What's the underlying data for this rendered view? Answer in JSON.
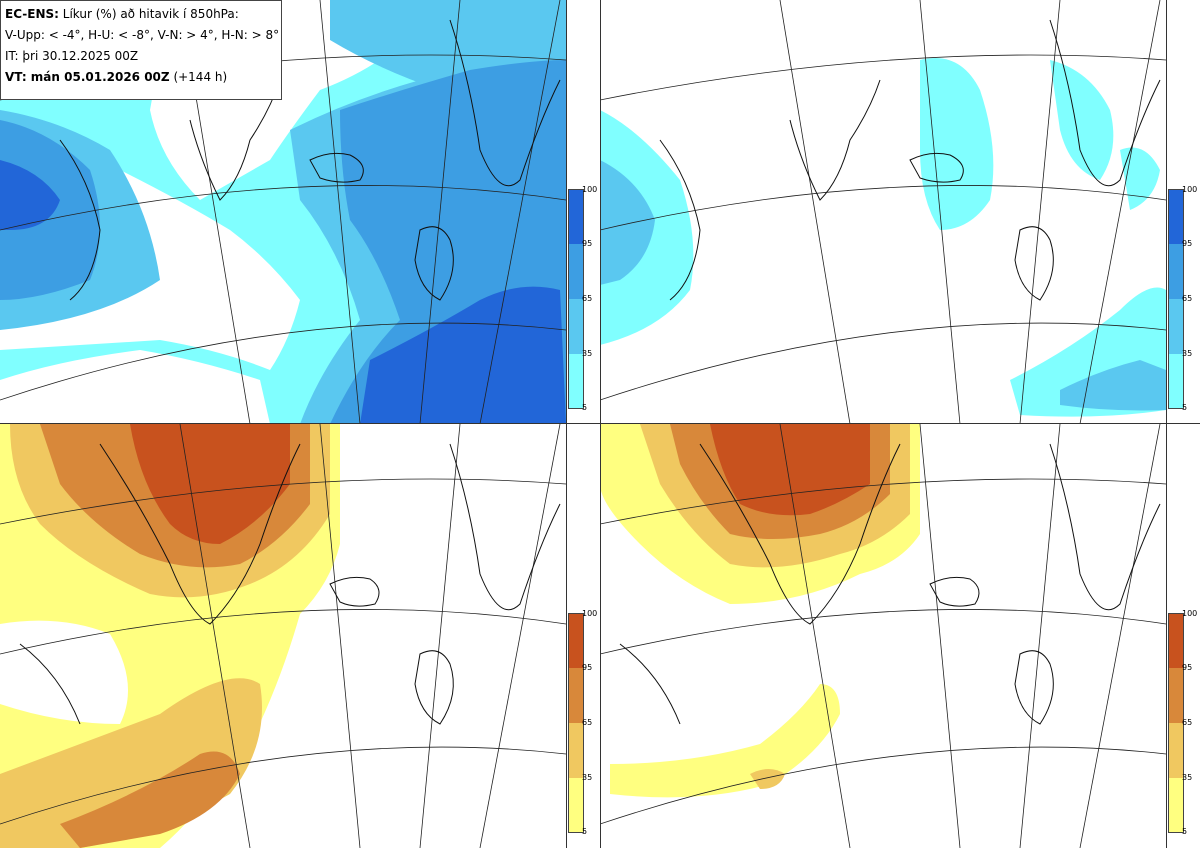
{
  "header": {
    "model": "EC-ENS:",
    "title": "Líkur (%) að hitavik í 850hPa:",
    "thresholds": "V-Upp: < -4°, H-U: < -8°, V-N: > 4°, H-N: > 8°",
    "init_time": "IT: þri 30.12.2025 00Z",
    "valid_label": "VT: mán 05.01.2026 00Z",
    "lead_time": "(+144 h)"
  },
  "colorbar": {
    "ticks": [
      "100",
      "95",
      "65",
      "35",
      "5"
    ],
    "cold_colors": [
      "#80ffff",
      "#5ac8f0",
      "#3d9ee3",
      "#2266d8"
    ],
    "warm_colors": [
      "#ffff80",
      "#f0c860",
      "#d8883a",
      "#c8521e"
    ]
  },
  "panels": [
    {
      "id": "cold-4",
      "scheme": "cold"
    },
    {
      "id": "cold-8",
      "scheme": "cold"
    },
    {
      "id": "warm-4",
      "scheme": "warm"
    },
    {
      "id": "warm-8",
      "scheme": "warm"
    }
  ]
}
